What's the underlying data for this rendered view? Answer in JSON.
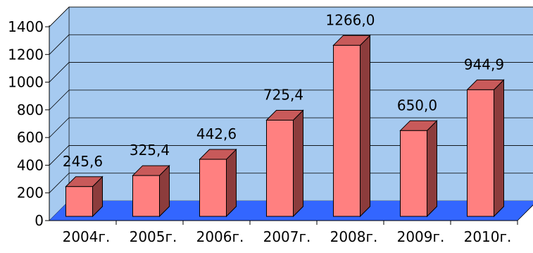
{
  "chart_data": {
    "type": "bar",
    "categories": [
      "2004г.",
      "2005г.",
      "2006г.",
      "2007г.",
      "2008г.",
      "2009г.",
      "2010г."
    ],
    "values": [
      245.6,
      325.4,
      442.6,
      725.4,
      1266.0,
      650.0,
      944.9
    ],
    "data_labels": [
      "245,6",
      "325,4",
      "442,6",
      "725,4",
      "1266,0",
      "650,0",
      "944,9"
    ],
    "y_ticks": [
      "0",
      "200",
      "400",
      "600",
      "800",
      "1000",
      "1200",
      "1400"
    ],
    "ylim": [
      0,
      1400
    ],
    "grid": true,
    "three_d": true,
    "title": "",
    "xlabel": "",
    "ylabel": ""
  },
  "colors": {
    "wall": "#a6caf0",
    "floor": "#3366ff",
    "bar_front": "#ff8080",
    "bar_top": "#c85a5a",
    "bar_side": "#8c3c3c",
    "grid": "#000000"
  }
}
